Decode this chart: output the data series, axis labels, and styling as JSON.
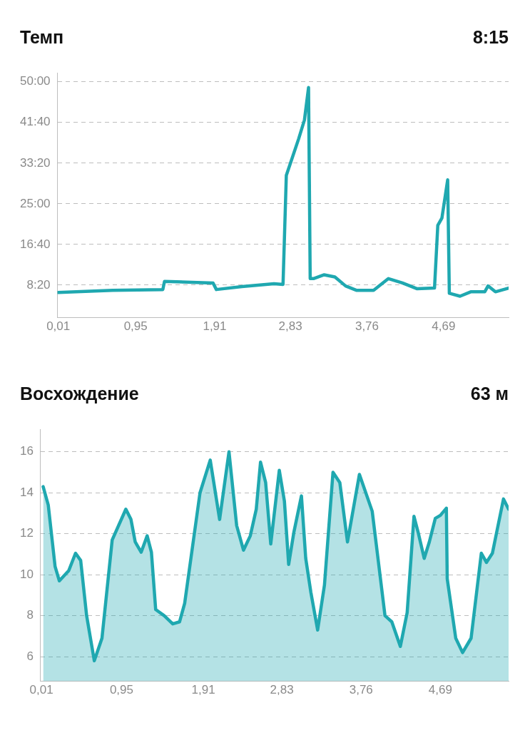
{
  "chart_data": [
    {
      "type": "line",
      "title": "Темп",
      "annotations": [
        "8:15"
      ],
      "grid": "y",
      "xlim": [
        0,
        5.48
      ],
      "ylim": [
        100,
        3110
      ],
      "xticks": [
        {
          "value": 0.01,
          "label": "0,01"
        },
        {
          "value": 0.95,
          "label": "0,95"
        },
        {
          "value": 1.91,
          "label": "1,91"
        },
        {
          "value": 2.83,
          "label": "2,83"
        },
        {
          "value": 3.76,
          "label": "3,76"
        },
        {
          "value": 4.69,
          "label": "4,69"
        }
      ],
      "yticks": [
        {
          "value": 500,
          "label": "8:20"
        },
        {
          "value": 1000,
          "label": "16:40"
        },
        {
          "value": 1500,
          "label": "25:00"
        },
        {
          "value": 2000,
          "label": "33:20"
        },
        {
          "value": 2500,
          "label": "41:40"
        },
        {
          "value": 3000,
          "label": "50:00"
        }
      ],
      "x": [
        0.01,
        0.67,
        1.28,
        1.3,
        1.89,
        1.93,
        2.24,
        2.63,
        2.74,
        2.78,
        2.84,
        2.93,
        3.0,
        3.05,
        3.07,
        3.11,
        3.24,
        3.37,
        3.5,
        3.63,
        3.84,
        4.02,
        4.19,
        4.37,
        4.58,
        4.62,
        4.67,
        4.74,
        4.76,
        4.89,
        5.02,
        5.19,
        5.23,
        5.32,
        5.48
      ],
      "series": [
        {
          "color": "#1fa8b0",
          "values": [
            410,
            437,
            446,
            545,
            527,
            446,
            482,
            518,
            509,
            1850,
            2030,
            2300,
            2530,
            2930,
            580,
            580,
            627,
            600,
            490,
            437,
            437,
            580,
            527,
            455,
            464,
            1234,
            1324,
            1795,
            400,
            364,
            418,
            418,
            490,
            418,
            464
          ]
        }
      ]
    },
    {
      "type": "area",
      "title": "Восхождение",
      "annotations": [
        "63 м"
      ],
      "grid": "y",
      "xlim": [
        0,
        5.49
      ],
      "ylim": [
        4.8,
        17.1
      ],
      "xticks": [
        {
          "value": 0.01,
          "label": "0,01"
        },
        {
          "value": 0.95,
          "label": "0,95"
        },
        {
          "value": 1.91,
          "label": "1,91"
        },
        {
          "value": 2.83,
          "label": "2,83"
        },
        {
          "value": 3.76,
          "label": "3,76"
        },
        {
          "value": 4.69,
          "label": "4,69"
        }
      ],
      "yticks": [
        6,
        8,
        10,
        12,
        14,
        16
      ],
      "x": [
        0.03,
        0.09,
        0.17,
        0.22,
        0.33,
        0.41,
        0.47,
        0.54,
        0.63,
        0.72,
        0.84,
        1.0,
        1.06,
        1.11,
        1.18,
        1.25,
        1.3,
        1.35,
        1.45,
        1.55,
        1.63,
        1.69,
        1.79,
        1.87,
        1.99,
        2.1,
        2.21,
        2.3,
        2.38,
        2.46,
        2.53,
        2.58,
        2.64,
        2.7,
        2.8,
        2.86,
        2.91,
        2.97,
        3.06,
        3.11,
        3.17,
        3.25,
        3.33,
        3.43,
        3.51,
        3.6,
        3.74,
        3.89,
        4.04,
        4.12,
        4.22,
        4.3,
        4.38,
        4.43,
        4.5,
        4.56,
        4.63,
        4.69,
        4.76,
        4.77,
        4.87,
        4.95,
        5.05,
        5.17,
        5.23,
        5.3,
        5.43,
        5.49
      ],
      "series": [
        {
          "color": "#1fa8b0",
          "values": [
            14.3,
            13.4,
            10.4,
            9.7,
            10.2,
            11.05,
            10.7,
            8.0,
            5.8,
            6.9,
            11.7,
            13.2,
            12.7,
            11.6,
            11.1,
            11.9,
            11.1,
            8.3,
            8.0,
            7.6,
            7.7,
            8.6,
            11.6,
            14.0,
            15.6,
            12.7,
            16.0,
            12.4,
            11.2,
            11.9,
            13.2,
            15.5,
            14.5,
            11.5,
            15.1,
            13.6,
            10.5,
            12.05,
            13.85,
            10.8,
            9.15,
            7.3,
            9.5,
            15.0,
            14.5,
            11.6,
            14.9,
            13.1,
            8.0,
            7.7,
            6.5,
            8.15,
            12.85,
            12.05,
            10.8,
            11.6,
            12.75,
            12.9,
            13.25,
            9.8,
            6.9,
            6.2,
            6.9,
            11.05,
            10.6,
            11.05,
            13.7,
            13.2
          ]
        }
      ]
    }
  ]
}
